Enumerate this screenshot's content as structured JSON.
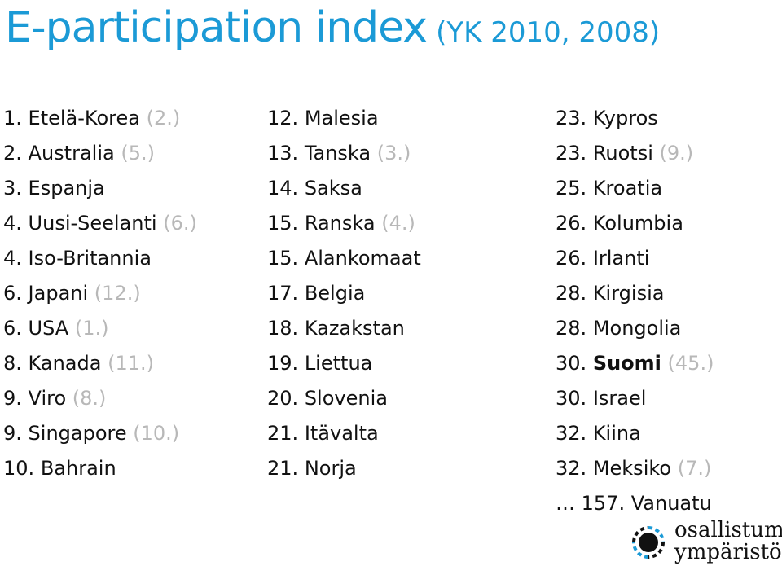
{
  "title": {
    "main": "E-participation index",
    "sub": "(YK 2010, 2008)"
  },
  "columns": [
    {
      "rows": [
        {
          "rank": "1.",
          "name": "Etelä-Korea",
          "prev": "(2.)"
        },
        {
          "rank": "2.",
          "name": "Australia",
          "prev": "(5.)"
        },
        {
          "rank": "3.",
          "name": "Espanja",
          "prev": ""
        },
        {
          "rank": "4.",
          "name": "Uusi-Seelanti",
          "prev": "(6.)"
        },
        {
          "rank": "4.",
          "name": "Iso-Britannia",
          "prev": ""
        },
        {
          "rank": "6.",
          "name": "Japani",
          "prev": "(12.)"
        },
        {
          "rank": "6.",
          "name": "USA",
          "prev": "(1.)"
        },
        {
          "rank": "8.",
          "name": "Kanada",
          "prev": "(11.)"
        },
        {
          "rank": "9.",
          "name": "Viro",
          "prev": "(8.)"
        },
        {
          "rank": "9.",
          "name": "Singapore",
          "prev": "(10.)"
        },
        {
          "rank": "10.",
          "name": "Bahrain",
          "prev": ""
        }
      ]
    },
    {
      "rows": [
        {
          "rank": "12.",
          "name": "Malesia",
          "prev": ""
        },
        {
          "rank": "13.",
          "name": "Tanska",
          "prev": "(3.)"
        },
        {
          "rank": "14.",
          "name": "Saksa",
          "prev": ""
        },
        {
          "rank": "15.",
          "name": "Ranska",
          "prev": "(4.)"
        },
        {
          "rank": "15.",
          "name": "Alankomaat",
          "prev": ""
        },
        {
          "rank": "17.",
          "name": "Belgia",
          "prev": ""
        },
        {
          "rank": "18.",
          "name": "Kazakstan",
          "prev": ""
        },
        {
          "rank": "19.",
          "name": "Liettua",
          "prev": ""
        },
        {
          "rank": "20.",
          "name": "Slovenia",
          "prev": ""
        },
        {
          "rank": "21.",
          "name": "Itävalta",
          "prev": ""
        },
        {
          "rank": "21.",
          "name": "Norja",
          "prev": ""
        }
      ]
    },
    {
      "rows": [
        {
          "rank": "23.",
          "name": "Kypros",
          "prev": ""
        },
        {
          "rank": "23.",
          "name": "Ruotsi",
          "prev": "(9.)"
        },
        {
          "rank": "25.",
          "name": "Kroatia",
          "prev": ""
        },
        {
          "rank": "26.",
          "name": "Kolumbia",
          "prev": ""
        },
        {
          "rank": "26.",
          "name": "Irlanti",
          "prev": ""
        },
        {
          "rank": "28.",
          "name": "Kirgisia",
          "prev": ""
        },
        {
          "rank": "28.",
          "name": "Mongolia",
          "prev": ""
        },
        {
          "rank": "30.",
          "name": "Suomi",
          "prev": "(45.)",
          "bold": true
        },
        {
          "rank": "30.",
          "name": "Israel",
          "prev": ""
        },
        {
          "rank": "32.",
          "name": "Kiina",
          "prev": ""
        },
        {
          "rank": "32.",
          "name": "Meksiko",
          "prev": "(7.)"
        },
        {
          "rank": "… 157.",
          "name": "Vanuatu",
          "prev": ""
        }
      ]
    }
  ],
  "logo": {
    "line1": "osallistumis-",
    "line2": "ympäristö"
  },
  "colors": {
    "accent": "#1b9ad6",
    "previous_rank": "#b8b8b8",
    "text": "#111111"
  }
}
